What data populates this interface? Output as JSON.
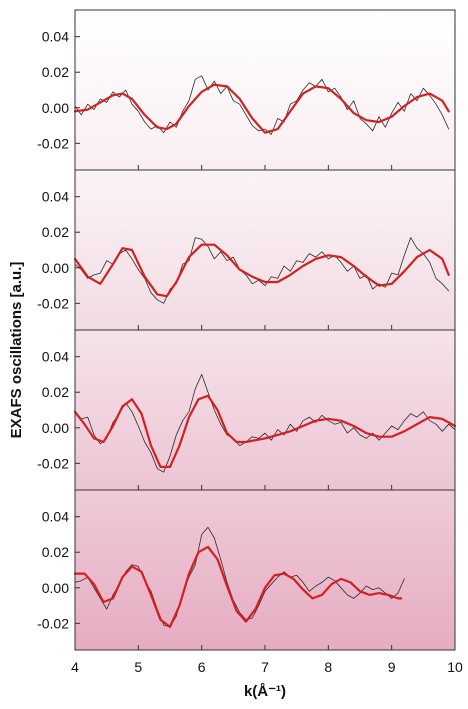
{
  "chart_data": {
    "type": "line",
    "xlabel": "k(Å⁻¹)",
    "ylabel": "EXAFS oscillations [a.u.]",
    "xlim": [
      4,
      10
    ],
    "ylim": [
      -0.035,
      0.055
    ],
    "x_ticks": [
      "4",
      "5",
      "6",
      "7",
      "8",
      "9",
      "10"
    ],
    "y_ticks": [
      {
        "value": 0.04,
        "label": "0.04"
      },
      {
        "value": 0.02,
        "label": "0.02"
      },
      {
        "value": 0.0,
        "label": "0.00"
      },
      {
        "value": -0.02,
        "label": "-0.02"
      }
    ],
    "grid": false,
    "legend": "none",
    "colors": {
      "experiment": "#2a2a2a",
      "fit": "#d42020",
      "frame": "#333333",
      "panel_tints": [
        [
          "#ffffff",
          "#f9eef2"
        ],
        [
          "#faf4f6",
          "#f2dbe3"
        ],
        [
          "#f6e3ea",
          "#ecc4d3"
        ],
        [
          "#efcbd9",
          "#e6acc2"
        ]
      ]
    },
    "panels": [
      {
        "series": [
          {
            "role": "fit",
            "x": [
              4.0,
              4.2,
              4.4,
              4.6,
              4.75,
              4.9,
              5.1,
              5.3,
              5.45,
              5.6,
              5.8,
              6.0,
              6.2,
              6.4,
              6.6,
              6.8,
              7.0,
              7.2,
              7.4,
              7.6,
              7.8,
              8.0,
              8.2,
              8.4,
              8.6,
              8.8,
              9.0,
              9.2,
              9.4,
              9.6,
              9.8,
              9.9
            ],
            "y": [
              -0.002,
              -0.001,
              0.003,
              0.007,
              0.008,
              0.005,
              -0.004,
              -0.011,
              -0.012,
              -0.009,
              0.001,
              0.009,
              0.013,
              0.012,
              0.005,
              -0.006,
              -0.014,
              -0.012,
              -0.002,
              0.008,
              0.012,
              0.011,
              0.005,
              -0.003,
              -0.007,
              -0.008,
              -0.005,
              0.001,
              0.006,
              0.008,
              0.004,
              -0.002
            ]
          },
          {
            "role": "experiment",
            "x": [
              4.0,
              4.1,
              4.2,
              4.3,
              4.4,
              4.5,
              4.6,
              4.7,
              4.8,
              4.9,
              5.0,
              5.1,
              5.2,
              5.3,
              5.4,
              5.5,
              5.6,
              5.7,
              5.8,
              5.9,
              6.0,
              6.1,
              6.2,
              6.3,
              6.4,
              6.5,
              6.6,
              6.7,
              6.8,
              6.9,
              7.0,
              7.1,
              7.2,
              7.3,
              7.4,
              7.5,
              7.6,
              7.7,
              7.8,
              7.9,
              8.0,
              8.1,
              8.2,
              8.3,
              8.4,
              8.5,
              8.6,
              8.7,
              8.8,
              8.9,
              9.0,
              9.1,
              9.2,
              9.3,
              9.4,
              9.5,
              9.6,
              9.7,
              9.8,
              9.9
            ],
            "y": [
              0.001,
              -0.004,
              0.002,
              -0.001,
              0.005,
              0.003,
              0.009,
              0.006,
              0.01,
              0.002,
              -0.002,
              -0.008,
              -0.012,
              -0.01,
              -0.014,
              -0.008,
              -0.011,
              -0.002,
              0.004,
              0.016,
              0.018,
              0.01,
              0.015,
              0.008,
              0.012,
              0.004,
              0.002,
              -0.004,
              -0.01,
              -0.013,
              -0.012,
              -0.015,
              -0.006,
              -0.008,
              0.002,
              0.004,
              0.01,
              0.014,
              0.012,
              0.016,
              0.009,
              0.011,
              0.006,
              -0.001,
              0.004,
              -0.006,
              -0.009,
              -0.013,
              -0.005,
              -0.011,
              -0.003,
              0.003,
              -0.002,
              0.008,
              0.004,
              0.011,
              0.007,
              0.002,
              -0.004,
              -0.012
            ]
          }
        ]
      },
      {
        "series": [
          {
            "role": "fit",
            "x": [
              4.0,
              4.2,
              4.4,
              4.6,
              4.75,
              4.9,
              5.1,
              5.3,
              5.45,
              5.6,
              5.8,
              6.0,
              6.2,
              6.4,
              6.6,
              6.8,
              7.0,
              7.2,
              7.4,
              7.6,
              7.8,
              8.0,
              8.2,
              8.4,
              8.6,
              8.8,
              9.0,
              9.2,
              9.4,
              9.6,
              9.8,
              9.9
            ],
            "y": [
              0.005,
              -0.005,
              -0.009,
              0.002,
              0.011,
              0.01,
              -0.005,
              -0.015,
              -0.016,
              -0.008,
              0.006,
              0.013,
              0.013,
              0.007,
              -0.001,
              -0.005,
              -0.008,
              -0.008,
              -0.004,
              0.001,
              0.005,
              0.007,
              0.006,
              0.001,
              -0.005,
              -0.01,
              -0.009,
              -0.002,
              0.006,
              0.01,
              0.005,
              -0.004
            ]
          },
          {
            "role": "experiment",
            "x": [
              4.0,
              4.1,
              4.2,
              4.3,
              4.4,
              4.5,
              4.6,
              4.7,
              4.8,
              4.9,
              5.0,
              5.1,
              5.2,
              5.3,
              5.4,
              5.5,
              5.6,
              5.7,
              5.8,
              5.9,
              6.0,
              6.1,
              6.2,
              6.3,
              6.4,
              6.5,
              6.6,
              6.7,
              6.8,
              6.9,
              7.0,
              7.1,
              7.2,
              7.3,
              7.4,
              7.5,
              7.6,
              7.7,
              7.8,
              7.9,
              8.0,
              8.1,
              8.2,
              8.3,
              8.4,
              8.5,
              8.6,
              8.7,
              8.8,
              8.9,
              9.0,
              9.1,
              9.2,
              9.3,
              9.4,
              9.5,
              9.6,
              9.7,
              9.8,
              9.9
            ],
            "y": [
              0.002,
              -0.001,
              -0.006,
              -0.004,
              -0.003,
              0.004,
              0.002,
              0.008,
              0.01,
              0.005,
              -0.001,
              -0.006,
              -0.014,
              -0.018,
              -0.02,
              -0.012,
              -0.009,
              0.002,
              0.004,
              0.017,
              0.016,
              0.012,
              0.005,
              0.009,
              0.004,
              0.006,
              -0.001,
              -0.004,
              -0.009,
              -0.007,
              -0.01,
              -0.005,
              -0.006,
              0.001,
              -0.002,
              0.004,
              0.003,
              0.008,
              0.006,
              0.009,
              0.005,
              0.007,
              0.003,
              -0.002,
              0.001,
              -0.006,
              -0.004,
              -0.012,
              -0.009,
              -0.011,
              -0.003,
              -0.004,
              0.007,
              0.017,
              0.011,
              0.008,
              0.003,
              -0.006,
              -0.009,
              -0.013
            ]
          }
        ]
      },
      {
        "series": [
          {
            "role": "fit",
            "x": [
              4.0,
              4.15,
              4.3,
              4.45,
              4.6,
              4.75,
              4.9,
              5.05,
              5.2,
              5.35,
              5.5,
              5.65,
              5.8,
              5.95,
              6.1,
              6.25,
              6.4,
              6.55,
              6.7,
              6.85,
              7.0,
              7.2,
              7.4,
              7.6,
              7.8,
              8.0,
              8.2,
              8.4,
              8.6,
              8.8,
              9.0,
              9.2,
              9.4,
              9.6,
              9.8,
              10.0
            ],
            "y": [
              0.009,
              0.002,
              -0.006,
              -0.008,
              0.001,
              0.012,
              0.016,
              0.008,
              -0.01,
              -0.022,
              -0.022,
              -0.01,
              0.006,
              0.016,
              0.018,
              0.01,
              -0.003,
              -0.008,
              -0.008,
              -0.007,
              -0.006,
              -0.004,
              -0.002,
              0.001,
              0.004,
              0.005,
              0.004,
              0.001,
              -0.003,
              -0.005,
              -0.005,
              -0.002,
              0.002,
              0.006,
              0.005,
              0.001
            ]
          },
          {
            "role": "experiment",
            "x": [
              4.0,
              4.1,
              4.2,
              4.3,
              4.4,
              4.5,
              4.6,
              4.7,
              4.8,
              4.9,
              5.0,
              5.1,
              5.2,
              5.3,
              5.4,
              5.5,
              5.6,
              5.7,
              5.8,
              5.9,
              6.0,
              6.1,
              6.2,
              6.3,
              6.4,
              6.5,
              6.6,
              6.7,
              6.8,
              6.9,
              7.0,
              7.1,
              7.2,
              7.3,
              7.4,
              7.5,
              7.6,
              7.7,
              7.8,
              7.9,
              8.0,
              8.1,
              8.2,
              8.3,
              8.4,
              8.5,
              8.6,
              8.7,
              8.8,
              8.9,
              9.0,
              9.1,
              9.2,
              9.3,
              9.4,
              9.5,
              9.6,
              9.7,
              9.8,
              9.9,
              10.0
            ],
            "y": [
              0.008,
              0.005,
              0.006,
              -0.004,
              -0.009,
              -0.006,
              0.003,
              0.008,
              0.014,
              0.009,
              0.001,
              -0.008,
              -0.014,
              -0.023,
              -0.025,
              -0.016,
              -0.004,
              0.004,
              0.009,
              0.022,
              0.03,
              0.02,
              0.01,
              0.002,
              -0.004,
              -0.006,
              -0.01,
              -0.008,
              -0.005,
              -0.006,
              -0.003,
              -0.007,
              -0.001,
              -0.004,
              0.002,
              -0.002,
              0.004,
              0.006,
              0.003,
              0.007,
              0.004,
              0.002,
              0.003,
              -0.003,
              0.0,
              -0.004,
              -0.006,
              -0.003,
              -0.007,
              -0.003,
              0.001,
              -0.001,
              0.004,
              0.008,
              0.006,
              0.009,
              0.004,
              0.002,
              -0.002,
              0.002,
              -0.001
            ]
          }
        ]
      },
      {
        "series": [
          {
            "role": "fit",
            "x": [
              4.0,
              4.15,
              4.3,
              4.45,
              4.6,
              4.75,
              4.9,
              5.05,
              5.2,
              5.35,
              5.5,
              5.65,
              5.8,
              5.95,
              6.1,
              6.25,
              6.4,
              6.55,
              6.7,
              6.85,
              7.0,
              7.15,
              7.3,
              7.45,
              7.6,
              7.75,
              7.9,
              8.05,
              8.2,
              8.35,
              8.5,
              8.65,
              8.8,
              8.95,
              9.1,
              9.15
            ],
            "y": [
              0.008,
              0.008,
              0.002,
              -0.008,
              -0.006,
              0.006,
              0.012,
              0.009,
              -0.004,
              -0.018,
              -0.022,
              -0.01,
              0.008,
              0.02,
              0.023,
              0.016,
              0.001,
              -0.013,
              -0.019,
              -0.012,
              0.0,
              0.007,
              0.008,
              0.005,
              -0.001,
              -0.006,
              -0.004,
              0.002,
              0.005,
              0.003,
              -0.002,
              -0.004,
              -0.003,
              -0.004,
              -0.006,
              -0.006
            ]
          },
          {
            "role": "experiment",
            "x": [
              4.0,
              4.1,
              4.2,
              4.3,
              4.4,
              4.5,
              4.6,
              4.7,
              4.8,
              4.9,
              5.0,
              5.1,
              5.2,
              5.3,
              5.4,
              5.5,
              5.6,
              5.7,
              5.8,
              5.9,
              6.0,
              6.1,
              6.2,
              6.3,
              6.4,
              6.5,
              6.6,
              6.7,
              6.8,
              6.9,
              7.0,
              7.1,
              7.2,
              7.3,
              7.4,
              7.5,
              7.6,
              7.7,
              7.8,
              7.9,
              8.0,
              8.1,
              8.2,
              8.3,
              8.4,
              8.5,
              8.6,
              8.7,
              8.8,
              8.9,
              9.0,
              9.1,
              9.2
            ],
            "y": [
              0.003,
              0.004,
              0.006,
              0.0,
              -0.006,
              -0.012,
              -0.004,
              0.002,
              0.009,
              0.013,
              0.012,
              0.004,
              -0.002,
              -0.012,
              -0.021,
              -0.022,
              -0.016,
              -0.003,
              0.006,
              0.013,
              0.03,
              0.034,
              0.028,
              0.016,
              0.003,
              -0.007,
              -0.014,
              -0.018,
              -0.017,
              -0.01,
              -0.002,
              0.002,
              0.006,
              0.009,
              0.006,
              0.007,
              0.003,
              -0.002,
              0.001,
              0.003,
              0.006,
              0.004,
              0.0,
              -0.004,
              -0.006,
              -0.003,
              0.001,
              -0.001,
              0.0,
              -0.003,
              -0.006,
              -0.003,
              0.005
            ]
          }
        ]
      }
    ]
  }
}
